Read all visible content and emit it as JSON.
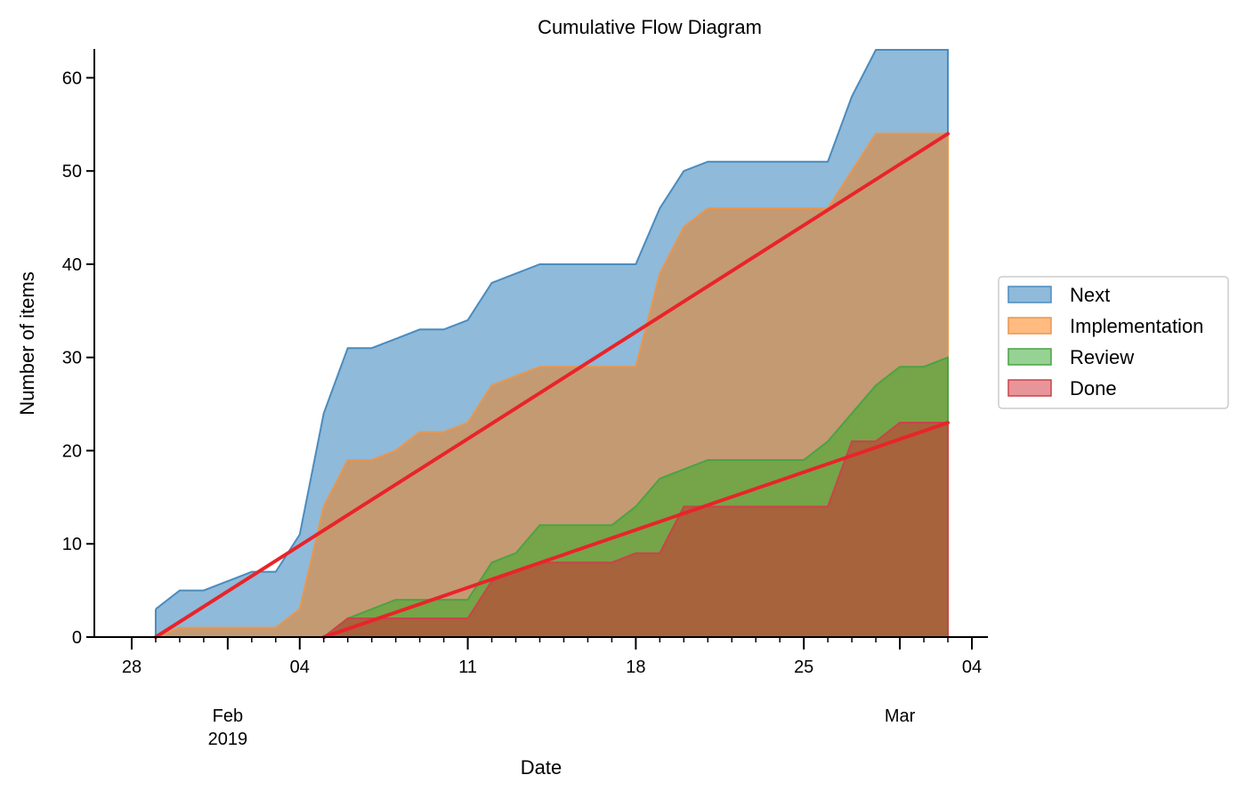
{
  "chart_data": {
    "type": "area",
    "title": "Cumulative Flow Diagram",
    "xlabel": "Date",
    "ylabel": "Number of items",
    "ylim": [
      0,
      63
    ],
    "yticks": [
      0,
      10,
      20,
      30,
      40,
      50,
      60
    ],
    "xlim": [
      "2019-01-27",
      "2019-03-04"
    ],
    "x_major_ticks": [
      {
        "date": "2019-01-28",
        "label": "28"
      },
      {
        "date": "2019-02-04",
        "label": "04"
      },
      {
        "date": "2019-02-11",
        "label": "11"
      },
      {
        "date": "2019-02-18",
        "label": "18"
      },
      {
        "date": "2019-02-25",
        "label": "25"
      },
      {
        "date": "2019-03-04",
        "label": "04"
      }
    ],
    "x_month_labels": [
      {
        "date": "2019-02-01",
        "lines": [
          "Feb",
          "2019"
        ]
      },
      {
        "date": "2019-03-01",
        "lines": [
          "Mar"
        ]
      }
    ],
    "legend": {
      "position": "right",
      "entries": [
        "Next",
        "Implementation",
        "Review",
        "Done"
      ]
    },
    "colors": {
      "Next": {
        "fill": "#8fbad9",
        "line": "#4a8cbf"
      },
      "Implementation": {
        "fill": "#c49a72",
        "line": "#e8964f",
        "swatch": "#ffbb80"
      },
      "Review": {
        "fill": "#76a448",
        "line": "#4aa344",
        "swatch": "#96d294"
      },
      "Done": {
        "fill": "#a6633c",
        "line": "#c9444a",
        "swatch": "#e8959a"
      },
      "trend": "#e8242a"
    },
    "x": [
      "2019-01-29",
      "2019-01-30",
      "2019-01-31",
      "2019-02-01",
      "2019-02-02",
      "2019-02-03",
      "2019-02-04",
      "2019-02-05",
      "2019-02-06",
      "2019-02-07",
      "2019-02-08",
      "2019-02-09",
      "2019-02-10",
      "2019-02-11",
      "2019-02-12",
      "2019-02-13",
      "2019-02-14",
      "2019-02-15",
      "2019-02-16",
      "2019-02-17",
      "2019-02-18",
      "2019-02-19",
      "2019-02-20",
      "2019-02-21",
      "2019-02-22",
      "2019-02-23",
      "2019-02-24",
      "2019-02-25",
      "2019-02-26",
      "2019-02-27",
      "2019-02-28",
      "2019-03-01",
      "2019-03-02",
      "2019-03-03"
    ],
    "series": [
      {
        "name": "Next",
        "values": [
          3,
          5,
          5,
          6,
          7,
          7,
          11,
          24,
          31,
          31,
          32,
          33,
          33,
          34,
          38,
          39,
          40,
          40,
          40,
          40,
          40,
          46,
          50,
          51,
          51,
          51,
          51,
          51,
          51,
          58,
          63,
          63,
          63,
          63
        ]
      },
      {
        "name": "Implementation",
        "values": [
          0,
          1,
          1,
          1,
          1,
          1,
          3,
          14,
          19,
          19,
          20,
          22,
          22,
          23,
          27,
          28,
          29,
          29,
          29,
          29,
          29,
          39,
          44,
          46,
          46,
          46,
          46,
          46,
          46,
          50,
          54,
          54,
          54,
          54
        ]
      },
      {
        "name": "Review",
        "values": [
          null,
          null,
          null,
          null,
          null,
          null,
          null,
          0,
          2,
          3,
          4,
          4,
          4,
          4,
          8,
          9,
          12,
          12,
          12,
          12,
          14,
          17,
          18,
          19,
          19,
          19,
          19,
          19,
          21,
          24,
          27,
          29,
          29,
          30
        ]
      },
      {
        "name": "Done",
        "values": [
          null,
          null,
          null,
          null,
          null,
          null,
          null,
          0,
          2,
          2,
          2,
          2,
          2,
          2,
          6,
          7,
          8,
          8,
          8,
          8,
          9,
          9,
          14,
          14,
          14,
          14,
          14,
          14,
          14,
          21,
          21,
          23,
          23,
          23
        ]
      }
    ],
    "trend_lines": [
      {
        "from": {
          "x": "2019-01-29",
          "y": 0
        },
        "to": {
          "x": "2019-03-03",
          "y": 54
        }
      },
      {
        "from": {
          "x": "2019-02-05",
          "y": 0
        },
        "to": {
          "x": "2019-03-03",
          "y": 23
        }
      }
    ]
  }
}
